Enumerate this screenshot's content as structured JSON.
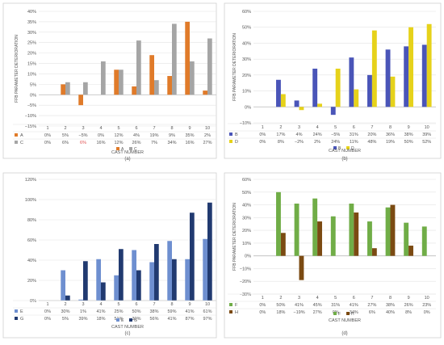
{
  "chart_data": [
    {
      "type": "bar",
      "panel_label": "(a)",
      "ylabel": "FFB PARAMETER DETERIORATION",
      "xlabel": "CAST NUMBER",
      "ylim": [
        -15,
        40
      ],
      "yticks": [
        -15,
        -10,
        -5,
        0,
        5,
        10,
        15,
        20,
        25,
        30,
        35,
        40
      ],
      "ytick_labels": [
        "−15%",
        "−10%",
        "−5%",
        "0%",
        "5%",
        "10%",
        "15%",
        "20%",
        "25%",
        "30%",
        "35%",
        "40%"
      ],
      "categories": [
        "1",
        "2",
        "3",
        "4",
        "5",
        "6",
        "7",
        "8",
        "9",
        "10"
      ],
      "grid": true,
      "legend": "bottom",
      "series": [
        {
          "name": "A",
          "color": "#E07B2A",
          "values": [
            0,
            5,
            -5,
            0,
            12,
            4,
            19,
            9,
            35,
            2
          ],
          "labels": [
            "0%",
            "5%",
            "−5%",
            "0%",
            "12%",
            "4%",
            "19%",
            "9%",
            "35%",
            "2%"
          ]
        },
        {
          "name": "C",
          "color": "#A5A5A5",
          "values": [
            0,
            6,
            6,
            16,
            12,
            26,
            7,
            34,
            16,
            27
          ],
          "labels": [
            "0%",
            "6%",
            "6%",
            "16%",
            "12%",
            "26%",
            "7%",
            "34%",
            "16%",
            "27%"
          ]
        }
      ]
    },
    {
      "type": "bar",
      "panel_label": "(b)",
      "ylabel": "FFB PARAMETER DETERIORATION",
      "xlabel": "CAST NUMBER",
      "ylim": [
        -10,
        60
      ],
      "yticks": [
        -10,
        0,
        10,
        20,
        30,
        40,
        50,
        60
      ],
      "ytick_labels": [
        "−10%",
        "0%",
        "10%",
        "20%",
        "30%",
        "40%",
        "50%",
        "60%"
      ],
      "categories": [
        "1",
        "2",
        "3",
        "4",
        "5",
        "6",
        "7",
        "8",
        "9",
        "10"
      ],
      "grid": true,
      "legend": "bottom",
      "series": [
        {
          "name": "B",
          "color": "#4A55B8",
          "values": [
            0,
            17,
            4,
            24,
            -5,
            31,
            20,
            36,
            38,
            39
          ],
          "labels": [
            "0%",
            "17%",
            "4%",
            "24%",
            "−5%",
            "31%",
            "20%",
            "36%",
            "38%",
            "39%"
          ]
        },
        {
          "name": "D",
          "color": "#E6D21A",
          "values": [
            0,
            8,
            -2,
            2,
            24,
            11,
            48,
            19,
            50,
            52
          ],
          "labels": [
            "0%",
            "8%",
            "−2%",
            "2%",
            "24%",
            "11%",
            "48%",
            "19%",
            "50%",
            "52%"
          ]
        }
      ]
    },
    {
      "type": "bar",
      "panel_label": "(c)",
      "ylabel": "",
      "xlabel": "CAST NUMBER",
      "ylim": [
        0,
        120
      ],
      "yticks": [
        0,
        20,
        40,
        60,
        80,
        100,
        120
      ],
      "ytick_labels": [
        "0%",
        "20%",
        "40%",
        "60%",
        "80%",
        "100%",
        "120%"
      ],
      "categories": [
        "1",
        "2",
        "3",
        "4",
        "5",
        "6",
        "7",
        "8",
        "9",
        "10"
      ],
      "grid": true,
      "legend": "bottom",
      "series": [
        {
          "name": "E",
          "color": "#6E8FD0",
          "values": [
            0,
            30,
            1,
            41,
            25,
            50,
            38,
            59,
            41,
            61
          ],
          "labels": [
            "0%",
            "30%",
            "1%",
            "41%",
            "25%",
            "50%",
            "38%",
            "59%",
            "41%",
            "61%"
          ]
        },
        {
          "name": "G",
          "color": "#213A70",
          "values": [
            0,
            5,
            39,
            18,
            51,
            30,
            56,
            41,
            87,
            97
          ],
          "labels": [
            "0%",
            "5%",
            "39%",
            "18%",
            "51%",
            "30%",
            "56%",
            "41%",
            "87%",
            "97%"
          ]
        }
      ]
    },
    {
      "type": "bar",
      "panel_label": "(d)",
      "ylabel": "FFB PARAMETER DETERIORATION",
      "xlabel": "CAST NUMBER",
      "ylim": [
        -30,
        60
      ],
      "yticks": [
        -30,
        -20,
        -10,
        0,
        10,
        20,
        30,
        40,
        50,
        60
      ],
      "ytick_labels": [
        "−30%",
        "−20%",
        "−10%",
        "0%",
        "10%",
        "20%",
        "30%",
        "40%",
        "50%",
        "60%"
      ],
      "categories": [
        "1",
        "2",
        "3",
        "4",
        "5",
        "6",
        "7",
        "8",
        "9",
        "10"
      ],
      "grid": true,
      "legend": "bottom",
      "series": [
        {
          "name": "F",
          "color": "#70AD47",
          "values": [
            0,
            50,
            41,
            45,
            31,
            41,
            27,
            38,
            26,
            23
          ],
          "labels": [
            "0%",
            "50%",
            "41%",
            "45%",
            "31%",
            "41%",
            "27%",
            "38%",
            "26%",
            "23%"
          ]
        },
        {
          "name": "H",
          "color": "#7B4A12",
          "values": [
            0,
            18,
            -19,
            27,
            0,
            34,
            6,
            40,
            8,
            0
          ],
          "labels": [
            "0%",
            "18%",
            "−19%",
            "27%",
            "0%",
            "34%",
            "6%",
            "40%",
            "8%",
            "0%"
          ]
        }
      ]
    }
  ]
}
